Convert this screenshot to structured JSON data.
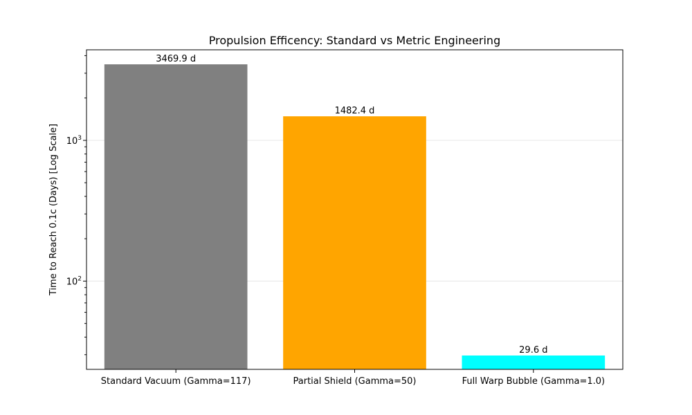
{
  "chart_data": {
    "type": "bar",
    "title": "Propulsion Efficency: Standard vs Metric Engineering",
    "xlabel": "",
    "ylabel": "Time to Reach 0.1c (Days) [Log Scale]",
    "yscale": "log",
    "ylim": [
      23.6,
      4400
    ],
    "grid": "y-major",
    "categories": [
      "Standard Vacuum (Gamma=117)",
      "Partial Shield (Gamma=50)",
      "Full Warp Bubble (Gamma=1.0)"
    ],
    "values": [
      3469.9,
      1482.4,
      29.6
    ],
    "data_labels": [
      "3469.9 d",
      "1482.4 d",
      "29.6 d"
    ],
    "colors": [
      "#808080",
      "#ffa500",
      "#00ffff"
    ],
    "y_major_ticks": [
      {
        "value": 100,
        "base": "10",
        "exp": "2"
      },
      {
        "value": 1000,
        "base": "10",
        "exp": "3"
      }
    ]
  }
}
